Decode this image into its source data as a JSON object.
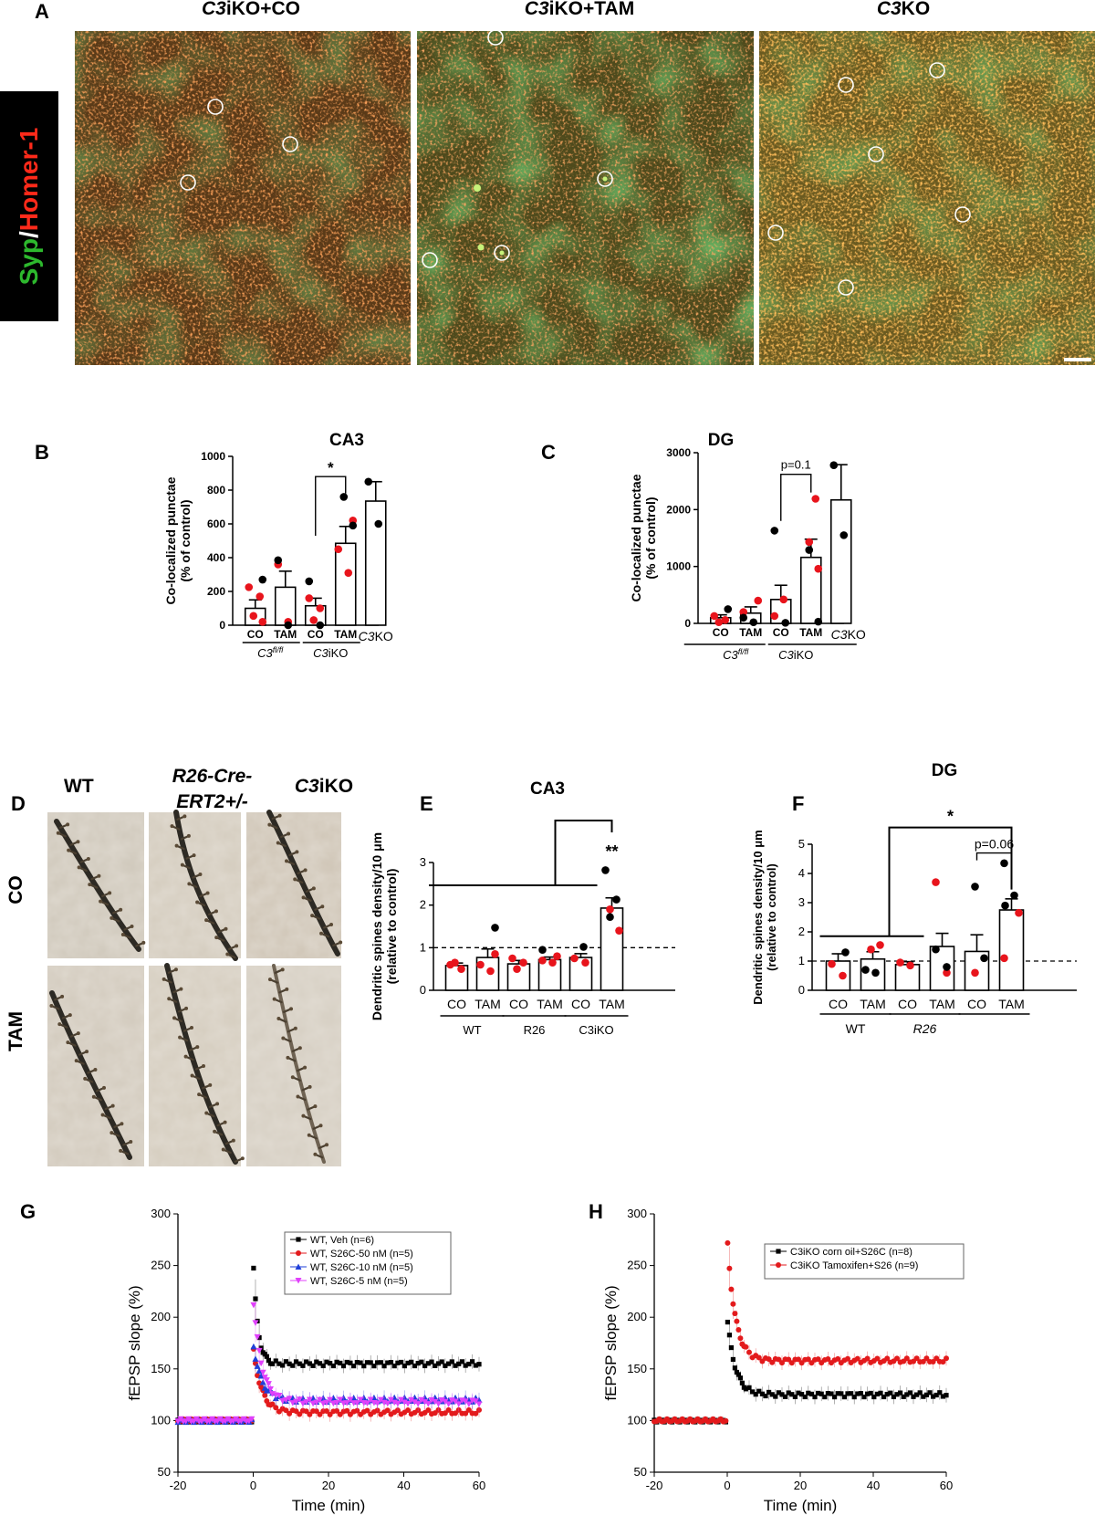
{
  "panel_letters": {
    "A": "A",
    "B": "B",
    "C": "C",
    "D": "D",
    "E": "E",
    "F": "F",
    "G": "G",
    "H": "H"
  },
  "panelA": {
    "side_label_green": "Syp",
    "side_label_slash": "/",
    "side_label_red": "Homer-1",
    "titles": [
      {
        "italic": "C3",
        "rest": "iKO+CO"
      },
      {
        "italic": "C3",
        "rest": "iKO+TAM"
      },
      {
        "italic": "C3",
        "rest": "KO"
      }
    ]
  },
  "chart_data": [
    {
      "panel": "B",
      "type": "bar",
      "title": "CA3",
      "ylabel": "Co-localized punctae\n(% of control)",
      "ylim": [
        0,
        1000
      ],
      "yticks": [
        0,
        200,
        400,
        600,
        800,
        1000
      ],
      "categories": [
        "CO",
        "TAM",
        "CO",
        "TAM",
        "C3KO"
      ],
      "group_labels": [
        {
          "label": "C3",
          "superscript": "fl/fl",
          "italic": "C3"
        },
        {
          "label": "C3iKO",
          "italic": "C3"
        }
      ],
      "values": [
        100,
        225,
        115,
        485,
        735
      ],
      "errors": [
        50,
        95,
        45,
        100,
        115
      ],
      "points_black": [
        [
          0,
          270
        ],
        [
          1,
          385
        ],
        [
          1,
          0
        ],
        [
          2,
          260
        ],
        [
          2,
          0
        ],
        [
          3,
          760
        ],
        [
          3,
          590
        ],
        [
          4,
          850
        ],
        [
          4,
          600
        ]
      ],
      "points_red": [
        [
          0,
          225
        ],
        [
          0,
          170
        ],
        [
          0,
          55
        ],
        [
          0,
          20
        ],
        [
          1,
          360
        ],
        [
          1,
          20
        ],
        [
          2,
          160
        ],
        [
          2,
          100
        ],
        [
          2,
          30
        ],
        [
          3,
          620
        ],
        [
          3,
          450
        ],
        [
          3,
          310
        ]
      ],
      "annotation": {
        "text": "*",
        "between": [
          2,
          3
        ]
      }
    },
    {
      "panel": "C",
      "type": "bar",
      "title": "DG",
      "ylabel": "Co-localized punctae\n(% of control)",
      "ylim": [
        0,
        3000
      ],
      "yticks": [
        0,
        1000,
        2000,
        3000
      ],
      "categories": [
        "CO",
        "TAM",
        "CO",
        "TAM",
        "C3KO"
      ],
      "group_labels": [
        {
          "label": "C3",
          "superscript": "fl/fl",
          "italic": "C3"
        },
        {
          "label": "C3iKO",
          "italic": "C3"
        }
      ],
      "values": [
        100,
        180,
        420,
        1160,
        2170
      ],
      "errors": [
        50,
        110,
        250,
        320,
        620
      ],
      "points_black": [
        [
          0,
          250
        ],
        [
          1,
          100
        ],
        [
          1,
          20
        ],
        [
          2,
          1630
        ],
        [
          2,
          10
        ],
        [
          3,
          1290
        ],
        [
          3,
          30
        ],
        [
          4,
          2780
        ],
        [
          4,
          1550
        ]
      ],
      "points_red": [
        [
          0,
          130
        ],
        [
          0,
          60
        ],
        [
          0,
          20
        ],
        [
          1,
          400
        ],
        [
          1,
          200
        ],
        [
          2,
          420
        ],
        [
          2,
          130
        ],
        [
          3,
          2190
        ],
        [
          3,
          1430
        ],
        [
          3,
          960
        ]
      ],
      "annotation": {
        "text": "p=0.1",
        "between": [
          2,
          3
        ]
      }
    },
    {
      "panel": "E",
      "type": "bar",
      "title": "CA3",
      "ylabel": "Dendritic spines density/10 μm\n(relative to control)",
      "ylim": [
        0,
        3
      ],
      "yticks": [
        0,
        1,
        2,
        3
      ],
      "reference_line": 1,
      "categories": [
        "CO",
        "TAM",
        "CO",
        "TAM",
        "CO",
        "TAM"
      ],
      "group_labels": [
        {
          "label": "WT"
        },
        {
          "label": "R26"
        },
        {
          "label": "C3iKO"
        }
      ],
      "values": [
        0.58,
        0.77,
        0.62,
        0.72,
        0.77,
        1.93
      ],
      "errors": [
        0.06,
        0.2,
        0.08,
        0.06,
        0.09,
        0.24
      ],
      "points_black": [
        [
          1,
          1.47
        ],
        [
          3,
          0.95
        ],
        [
          4,
          1.02
        ],
        [
          5,
          2.82
        ],
        [
          5,
          2.13
        ],
        [
          5,
          1.72
        ]
      ],
      "points_red": [
        [
          0,
          0.6
        ],
        [
          0,
          0.5
        ],
        [
          0,
          0.65
        ],
        [
          1,
          0.85
        ],
        [
          1,
          0.6
        ],
        [
          1,
          0.45
        ],
        [
          2,
          0.75
        ],
        [
          2,
          0.65
        ],
        [
          2,
          0.5
        ],
        [
          3,
          0.8
        ],
        [
          3,
          0.7
        ],
        [
          3,
          0.65
        ],
        [
          4,
          0.75
        ],
        [
          4,
          0.65
        ],
        [
          5,
          1.9
        ],
        [
          5,
          1.4
        ]
      ],
      "annotation": {
        "text": "**",
        "target": 5
      }
    },
    {
      "panel": "F",
      "type": "bar",
      "title": "DG",
      "ylabel": "Dendritic spines density/10 μm\n(relative to control)",
      "ylim": [
        0,
        5
      ],
      "yticks": [
        0,
        1,
        2,
        3,
        4,
        5
      ],
      "reference_line": 1,
      "categories": [
        "CO",
        "TAM",
        "CO",
        "TAM",
        "CO",
        "TAM"
      ],
      "group_labels": [
        {
          "label": "WT"
        },
        {
          "label": "R26",
          "italic": "R26"
        },
        {
          "label": ""
        }
      ],
      "values": [
        1.0,
        1.07,
        0.88,
        1.5,
        1.33,
        2.75
      ],
      "errors": [
        0.25,
        0.25,
        0.1,
        0.45,
        0.57,
        0.38
      ],
      "points_black": [
        [
          0,
          1.3
        ],
        [
          1,
          0.7
        ],
        [
          1,
          0.6
        ],
        [
          3,
          1.4
        ],
        [
          3,
          0.8
        ],
        [
          4,
          3.55
        ],
        [
          4,
          1.1
        ],
        [
          5,
          4.35
        ],
        [
          5,
          3.25
        ],
        [
          5,
          2.9
        ]
      ],
      "points_red": [
        [
          0,
          0.9
        ],
        [
          0,
          0.5
        ],
        [
          1,
          1.4
        ],
        [
          1,
          1.55
        ],
        [
          2,
          0.95
        ],
        [
          2,
          0.85
        ],
        [
          3,
          3.7
        ],
        [
          3,
          0.6
        ],
        [
          4,
          0.6
        ],
        [
          5,
          2.65
        ],
        [
          5,
          1.1
        ]
      ],
      "annotations": [
        {
          "text": "*",
          "between": [
            "WT/R26",
            5
          ]
        },
        {
          "text": "p=0.06",
          "between": [
            4,
            5
          ]
        }
      ]
    },
    {
      "panel": "G",
      "type": "line",
      "xlabel": "Time (min)",
      "ylabel": "fEPSP slope (%)",
      "xlim": [
        -20,
        60
      ],
      "ylim": [
        50,
        300
      ],
      "xticks": [
        -20,
        0,
        20,
        40,
        60
      ],
      "yticks": [
        50,
        100,
        150,
        200,
        250,
        300
      ],
      "series": [
        {
          "name": "WT, Veh (n=6)",
          "color": "#000000",
          "marker": "square",
          "baseline": 100,
          "peak": 255,
          "plateau": 155
        },
        {
          "name": "WT, S26C-50 nM (n=5)",
          "color": "#e31a1c",
          "marker": "circle",
          "baseline": 100,
          "peak": 170,
          "plateau": 108
        },
        {
          "name": "WT, S26C-10 nM (n=5)",
          "color": "#1f3fd9",
          "marker": "triangle",
          "baseline": 100,
          "peak": 175,
          "plateau": 120
        },
        {
          "name": "WT, S26C-5 nM (n=5)",
          "color": "#e040fb",
          "marker": "triangle-down",
          "baseline": 100,
          "peak": 218,
          "plateau": 118
        }
      ],
      "legend": "top-right"
    },
    {
      "panel": "H",
      "type": "line",
      "xlabel": "Time (min)",
      "ylabel": "fEPSP slope (%)",
      "xlim": [
        -20,
        60
      ],
      "ylim": [
        50,
        300
      ],
      "xticks": [
        -20,
        0,
        20,
        40,
        60
      ],
      "yticks": [
        50,
        100,
        150,
        200,
        250,
        300
      ],
      "series": [
        {
          "name": "C3iKO corn oil+S26C  (n=8)",
          "color": "#000000",
          "marker": "square",
          "baseline": 100,
          "peak": 198,
          "plateau": 125
        },
        {
          "name": "C3iKO Tamoxifen+S26  (n=9)",
          "color": "#e31a1c",
          "marker": "circle",
          "baseline": 100,
          "peak": 275,
          "plateau": 158
        }
      ],
      "legend": "top-right"
    }
  ],
  "panelD": {
    "col_headers": [
      {
        "text": "WT",
        "italic": false
      },
      {
        "text": "R26-Cre-ERT2+/-",
        "line1": "R26-Cre-",
        "line2": "ERT2+/-",
        "italic": true
      },
      {
        "italic": "C3",
        "rest": "iKO"
      }
    ],
    "row_headers": [
      "CO",
      "TAM"
    ]
  }
}
